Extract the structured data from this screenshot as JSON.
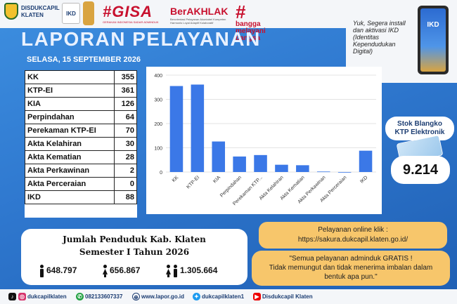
{
  "header": {
    "agency": "DISDUKCAPIL",
    "agency_sub": "KLATEN",
    "ikd_badge": "IKD",
    "gisa": "#GISA",
    "gisa_sub": "GERAKAN INDONESIA SADAR ADMINDUK",
    "berakhlak": "BerAKHLAK",
    "berakhlak_sub": "Berorientasi Pelayanan Akuntabel Kompeten Harmonis Loyal Adaptif Kolaboratif",
    "bangga_line1": "bangga",
    "bangga_line2": "melayani",
    "bangga_line3": "bangsa"
  },
  "title": "LAPORAN PELAYANAN",
  "date": "SELASA, 15 SEPTEMBER 2026",
  "promo": {
    "text": "Yuk, Segera install dan aktivasi IKD (Identitas Kependudukan Digital)",
    "phone_label": "IKD"
  },
  "services": [
    {
      "label": "KK",
      "value": "355"
    },
    {
      "label": "KTP-EI",
      "value": "361"
    },
    {
      "label": "KIA",
      "value": "126"
    },
    {
      "label": "Perpindahan",
      "value": "64"
    },
    {
      "label": "Perekaman KTP-EI",
      "value": "70"
    },
    {
      "label": "Akta Kelahiran",
      "value": "30"
    },
    {
      "label": "Akta Kematian",
      "value": "28"
    },
    {
      "label": "Akta Perkawinan",
      "value": "2"
    },
    {
      "label": "Akta Perceraian",
      "value": "0"
    },
    {
      "label": "IKD",
      "value": "88"
    }
  ],
  "chart_data": {
    "type": "bar",
    "categories": [
      "KK",
      "KTP-EI",
      "KIA",
      "Perpindahan",
      "Perekaman KTP...",
      "Akta Kelahiran",
      "Akta Kematian",
      "Akta Perkawinan",
      "Akta Perceraian",
      "IKD"
    ],
    "values": [
      355,
      361,
      126,
      64,
      70,
      30,
      28,
      2,
      0,
      88
    ],
    "ylim": [
      0,
      400
    ],
    "yticks": [
      0,
      100,
      200,
      300,
      400
    ],
    "grid": true,
    "bar_color": "#3b78e7"
  },
  "stok": {
    "title_line1": "Stok Blangko",
    "title_line2": "KTP Elektronik",
    "value": "9.214"
  },
  "population": {
    "title_line1": "Jumlah Penduduk Kab. Klaten",
    "title_line2": "Semester I Tahun 2026",
    "male": "648.797",
    "female": "656.867",
    "total": "1.305.664"
  },
  "online": {
    "line1": "Pelayanan online klik :",
    "line2": "https://sakura.dukcapil.klaten.go.id/"
  },
  "gratis": {
    "line1": "\"Semua pelayanan adminduk GRATIS !",
    "line2": "Tidak memungut dan tidak menerima imbalan dalam",
    "line3": "bentuk apa pun.\""
  },
  "footer": {
    "tiktok": "",
    "instagram": "dukcapilklaten",
    "whatsapp": "082133607337",
    "web": "www.lapor.go.id",
    "twitter": "dukcapilklaten1",
    "youtube": "Disdukcapil Klaten"
  },
  "colors": {
    "background": "#2f78cf",
    "accent_red": "#c8102e",
    "note_box": "#f7c66b",
    "bar": "#3b78e7"
  }
}
